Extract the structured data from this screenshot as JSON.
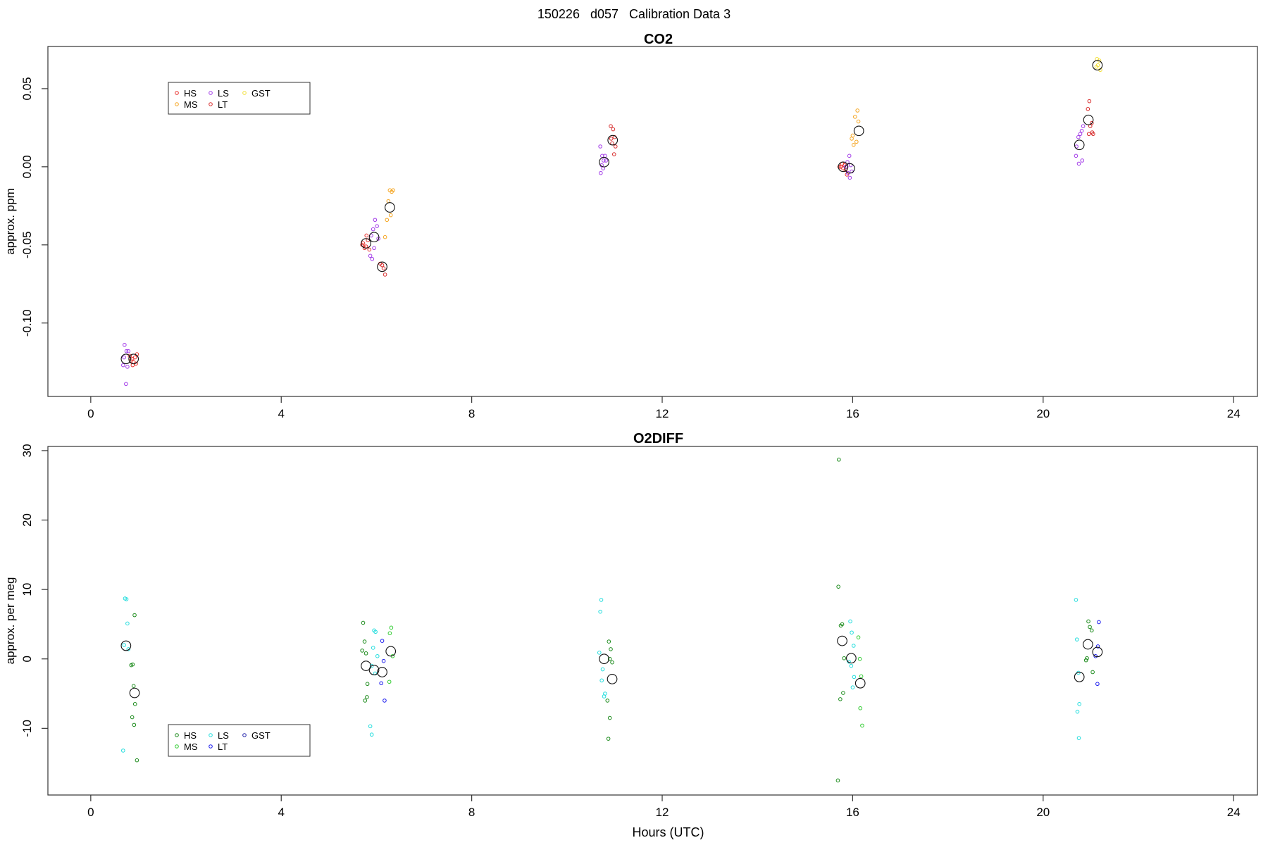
{
  "figure_title": "150226   d057   Calibration Data 3",
  "chart_data": [
    {
      "type": "scatter",
      "title": "CO2",
      "xlabel": "",
      "ylabel": "approx. ppm",
      "xlim": [
        -0.9,
        24.5
      ],
      "ylim": [
        -0.147,
        0.077
      ],
      "xticks": [
        0,
        4,
        8,
        12,
        16,
        20,
        24
      ],
      "yticks": [
        -0.1,
        -0.05,
        0.0,
        0.05
      ],
      "ytick_labels": [
        "-0.10",
        "-0.05",
        "0.00",
        "0.05"
      ],
      "legend": {
        "position": "top-left",
        "entries": [
          {
            "label": "HS",
            "color": "#e8302c"
          },
          {
            "label": "MS",
            "color": "#f5a623"
          },
          {
            "label": "LS",
            "color": "#a23be8"
          },
          {
            "label": "LT",
            "color": "#d72e2e"
          },
          {
            "label": "GST",
            "color": "#f2df3a"
          }
        ]
      },
      "series": [
        {
          "label": "HS",
          "color": "#e8302c",
          "points": [
            [
              0.87,
              -0.123
            ],
            [
              0.9,
              -0.125
            ],
            [
              0.84,
              -0.124
            ],
            [
              0.93,
              -0.122
            ],
            [
              0.88,
              -0.127
            ],
            [
              0.95,
              -0.126
            ],
            [
              0.97,
              -0.12
            ],
            [
              0.82,
              -0.121
            ],
            [
              5.72,
              -0.049
            ],
            [
              5.78,
              -0.051
            ],
            [
              5.82,
              -0.047
            ],
            [
              5.75,
              -0.052
            ],
            [
              5.85,
              -0.053
            ],
            [
              5.79,
              -0.044
            ],
            [
              5.7,
              -0.05
            ],
            [
              15.75,
              0.0
            ],
            [
              15.8,
              -0.001
            ],
            [
              15.83,
              0.001
            ],
            [
              15.78,
              0.002
            ],
            [
              15.85,
              -0.002
            ],
            [
              15.72,
              0.0
            ],
            [
              15.88,
              -0.005
            ]
          ]
        },
        {
          "label": "MS",
          "color": "#f5a623",
          "points": [
            [
              6.28,
              -0.015
            ],
            [
              6.32,
              -0.016
            ],
            [
              6.25,
              -0.022
            ],
            [
              6.3,
              -0.031
            ],
            [
              6.22,
              -0.034
            ],
            [
              6.18,
              -0.045
            ],
            [
              6.35,
              -0.015
            ],
            [
              16.1,
              0.036
            ],
            [
              16.05,
              0.032
            ],
            [
              16.12,
              0.029
            ],
            [
              16.0,
              0.02
            ],
            [
              16.08,
              0.016
            ],
            [
              16.02,
              0.014
            ],
            [
              15.98,
              0.018
            ]
          ]
        },
        {
          "label": "LS",
          "color": "#a23be8",
          "points": [
            [
              0.71,
              -0.114
            ],
            [
              0.75,
              -0.118
            ],
            [
              0.79,
              -0.118
            ],
            [
              0.68,
              -0.127
            ],
            [
              0.77,
              -0.128
            ],
            [
              0.74,
              -0.139
            ],
            [
              0.7,
              -0.122
            ],
            [
              5.97,
              -0.034
            ],
            [
              6.01,
              -0.038
            ],
            [
              5.93,
              -0.04
            ],
            [
              5.89,
              -0.044
            ],
            [
              5.87,
              -0.057
            ],
            [
              5.91,
              -0.059
            ],
            [
              6.04,
              -0.046
            ],
            [
              5.95,
              -0.052
            ],
            [
              10.7,
              0.013
            ],
            [
              10.74,
              0.007
            ],
            [
              10.77,
              0.004
            ],
            [
              10.8,
              0.007
            ],
            [
              10.73,
              0.001
            ],
            [
              10.76,
              -0.001
            ],
            [
              10.71,
              -0.004
            ],
            [
              10.82,
              0.004
            ],
            [
              15.93,
              0.007
            ],
            [
              15.89,
              0.003
            ],
            [
              15.96,
              0.001
            ],
            [
              15.85,
              0.0
            ],
            [
              15.9,
              -0.004
            ],
            [
              15.94,
              -0.007
            ],
            [
              15.98,
              -0.003
            ],
            [
              20.7,
              0.013
            ],
            [
              20.74,
              0.019
            ],
            [
              20.78,
              0.021
            ],
            [
              20.81,
              0.023
            ],
            [
              20.69,
              0.007
            ],
            [
              20.75,
              0.002
            ],
            [
              20.82,
              0.004
            ],
            [
              20.84,
              0.026
            ]
          ]
        },
        {
          "label": "LT",
          "color": "#d72e2e",
          "points": [
            [
              6.12,
              -0.063
            ],
            [
              6.18,
              -0.069
            ],
            [
              6.08,
              -0.062
            ],
            [
              6.15,
              -0.065
            ],
            [
              10.92,
              0.026
            ],
            [
              10.97,
              0.024
            ],
            [
              11.0,
              0.019
            ],
            [
              10.95,
              0.015
            ],
            [
              11.02,
              0.013
            ],
            [
              10.99,
              0.008
            ],
            [
              10.93,
              0.018
            ],
            [
              20.97,
              0.042
            ],
            [
              20.94,
              0.037
            ],
            [
              21.02,
              0.028
            ],
            [
              20.99,
              0.026
            ],
            [
              21.03,
              0.022
            ],
            [
              20.96,
              0.021
            ],
            [
              21.05,
              0.021
            ]
          ]
        },
        {
          "label": "GST",
          "color": "#f2df3a",
          "points": [
            [
              21.13,
              0.069
            ],
            [
              21.18,
              0.068
            ],
            [
              21.15,
              0.065
            ],
            [
              21.2,
              0.062
            ],
            [
              21.12,
              0.064
            ]
          ]
        }
      ],
      "means": [
        [
          0.74,
          -0.123
        ],
        [
          0.9,
          -0.123
        ],
        [
          5.78,
          -0.049
        ],
        [
          5.95,
          -0.045
        ],
        [
          6.12,
          -0.064
        ],
        [
          6.28,
          -0.026
        ],
        [
          10.78,
          0.003
        ],
        [
          10.96,
          0.017
        ],
        [
          15.8,
          0.0
        ],
        [
          15.94,
          -0.001
        ],
        [
          16.13,
          0.023
        ],
        [
          20.76,
          0.014
        ],
        [
          20.95,
          0.03
        ],
        [
          21.14,
          0.065
        ]
      ]
    },
    {
      "type": "scatter",
      "title": "O2DIFF",
      "xlabel": "Hours (UTC)",
      "ylabel": "approx. per meg",
      "xlim": [
        -0.9,
        24.5
      ],
      "ylim": [
        -19.6,
        30.6
      ],
      "xticks": [
        0,
        4,
        8,
        12,
        16,
        20,
        24
      ],
      "yticks": [
        -10,
        0,
        10,
        20,
        30
      ],
      "ytick_labels": [
        "-10",
        "0",
        "10",
        "20",
        "30"
      ],
      "legend": {
        "position": "bottom-left",
        "entries": [
          {
            "label": "HS",
            "color": "#1a8a1a"
          },
          {
            "label": "MS",
            "color": "#33cc33"
          },
          {
            "label": "LS",
            "color": "#22dddd"
          },
          {
            "label": "LT",
            "color": "#1a1aee"
          },
          {
            "label": "GST",
            "color": "#2222aa"
          }
        ]
      },
      "series": [
        {
          "label": "HS",
          "color": "#1a8a1a",
          "points": [
            [
              0.92,
              6.3
            ],
            [
              0.85,
              -0.9
            ],
            [
              0.88,
              -0.8
            ],
            [
              0.9,
              -3.9
            ],
            [
              0.93,
              -6.5
            ],
            [
              0.87,
              -8.4
            ],
            [
              0.91,
              -9.5
            ],
            [
              0.97,
              -14.6
            ],
            [
              5.72,
              5.2
            ],
            [
              5.75,
              2.5
            ],
            [
              5.7,
              1.2
            ],
            [
              5.78,
              0.8
            ],
            [
              5.81,
              -3.6
            ],
            [
              5.8,
              -5.5
            ],
            [
              5.76,
              -6.0
            ],
            [
              10.88,
              2.5
            ],
            [
              10.92,
              1.4
            ],
            [
              10.9,
              0.0
            ],
            [
              10.95,
              -0.5
            ],
            [
              10.85,
              -6.0
            ],
            [
              10.9,
              -8.5
            ],
            [
              10.87,
              -11.5
            ],
            [
              15.7,
              10.4
            ],
            [
              15.75,
              4.8
            ],
            [
              15.78,
              5.0
            ],
            [
              15.82,
              0.1
            ],
            [
              15.8,
              -4.9
            ],
            [
              15.74,
              -5.8
            ],
            [
              15.69,
              -17.5
            ],
            [
              15.71,
              28.7
            ],
            [
              20.95,
              5.4
            ],
            [
              20.98,
              4.6
            ],
            [
              21.02,
              4.1
            ],
            [
              20.92,
              0.1
            ],
            [
              20.9,
              -0.2
            ],
            [
              21.04,
              -1.9
            ]
          ]
        },
        {
          "label": "MS",
          "color": "#33cc33",
          "points": [
            [
              6.31,
              4.5
            ],
            [
              6.28,
              3.7
            ],
            [
              6.34,
              0.4
            ],
            [
              6.27,
              -3.3
            ],
            [
              16.12,
              3.1
            ],
            [
              16.15,
              0.0
            ],
            [
              16.18,
              -2.5
            ],
            [
              16.16,
              -7.1
            ],
            [
              16.2,
              -9.6
            ]
          ]
        },
        {
          "label": "LS",
          "color": "#22dddd",
          "points": [
            [
              0.72,
              8.7
            ],
            [
              0.75,
              8.6
            ],
            [
              0.77,
              5.1
            ],
            [
              0.79,
              1.4
            ],
            [
              0.7,
              2.0
            ],
            [
              0.68,
              -13.2
            ],
            [
              5.95,
              4.1
            ],
            [
              5.98,
              3.9
            ],
            [
              5.93,
              1.6
            ],
            [
              6.02,
              0.4
            ],
            [
              5.9,
              -1.0
            ],
            [
              5.97,
              -2.1
            ],
            [
              5.87,
              -9.7
            ],
            [
              5.9,
              -10.9
            ],
            [
              10.72,
              8.5
            ],
            [
              10.7,
              6.8
            ],
            [
              10.68,
              0.9
            ],
            [
              10.75,
              -1.5
            ],
            [
              10.73,
              -3.1
            ],
            [
              10.8,
              -5.0
            ],
            [
              10.78,
              -5.4
            ],
            [
              15.95,
              5.4
            ],
            [
              15.98,
              3.8
            ],
            [
              16.02,
              1.9
            ],
            [
              15.92,
              -0.4
            ],
            [
              15.97,
              -1.0
            ],
            [
              16.03,
              -2.6
            ],
            [
              16.0,
              -4.1
            ],
            [
              20.69,
              8.5
            ],
            [
              20.71,
              2.8
            ],
            [
              20.74,
              -2.0
            ],
            [
              20.76,
              -6.5
            ],
            [
              20.72,
              -7.6
            ],
            [
              20.75,
              -11.4
            ]
          ]
        },
        {
          "label": "LT",
          "color": "#1a1aee",
          "points": [
            [
              6.12,
              2.6
            ],
            [
              6.15,
              -0.3
            ],
            [
              6.1,
              -3.5
            ],
            [
              6.17,
              -6.0
            ],
            [
              21.17,
              5.3
            ],
            [
              21.15,
              1.8
            ],
            [
              21.1,
              0.4
            ],
            [
              21.14,
              -3.6
            ]
          ]
        },
        {
          "label": "GST",
          "color": "#2222aa",
          "points": []
        }
      ],
      "means": [
        [
          0.74,
          1.9
        ],
        [
          0.92,
          -4.9
        ],
        [
          5.78,
          -1.0
        ],
        [
          5.95,
          -1.6
        ],
        [
          6.12,
          -1.9
        ],
        [
          6.3,
          1.1
        ],
        [
          10.78,
          0.0
        ],
        [
          10.95,
          -2.9
        ],
        [
          15.78,
          2.6
        ],
        [
          15.97,
          0.1
        ],
        [
          16.16,
          -3.5
        ],
        [
          20.76,
          -2.6
        ],
        [
          20.94,
          2.1
        ],
        [
          21.14,
          1.0
        ]
      ]
    }
  ]
}
